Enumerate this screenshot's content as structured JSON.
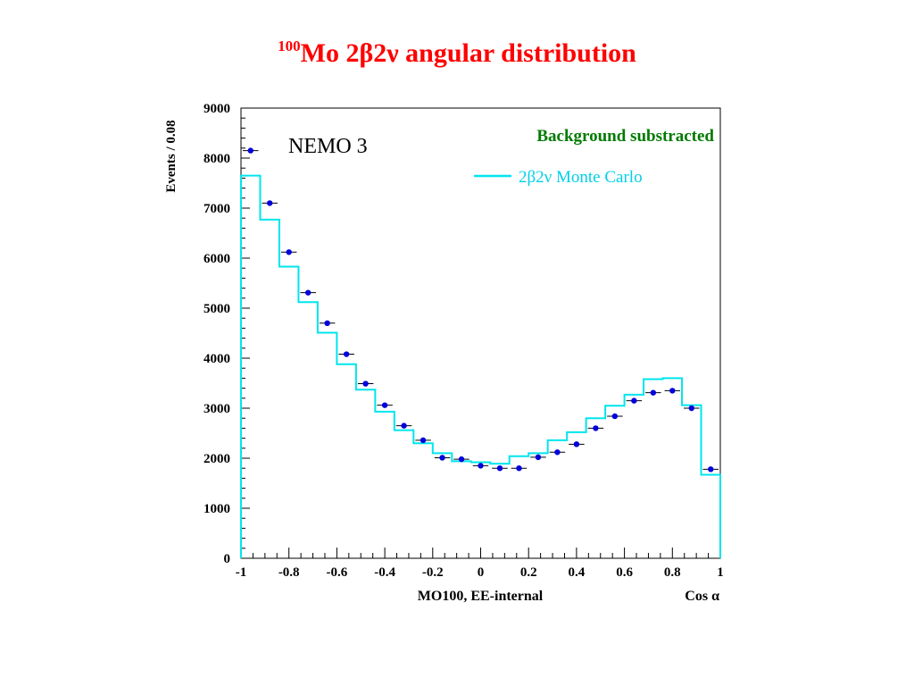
{
  "slide": {
    "title_sup": "100",
    "title_main": "Mo 2β2ν   angular distribution"
  },
  "chart_data": {
    "type": "histogram",
    "ylabel": "Events / 0.08",
    "xlabel": "MO100, EE-internal",
    "xlabel_right": "Cos α",
    "label_nemo": "NEMO 3",
    "label_background": "Background substracted",
    "legend": {
      "label": "2β2ν Monte Carlo",
      "placement": "top-right"
    },
    "xlim": [
      -1,
      1
    ],
    "ylim": [
      0,
      9000
    ],
    "xticks": [
      "-1",
      "-0.8",
      "-0.6",
      "-0.4",
      "-0.2",
      "0",
      "0.2",
      "0.4",
      "0.6",
      "0.8",
      "1"
    ],
    "yticks": [
      "0",
      "1000",
      "2000",
      "3000",
      "4000",
      "5000",
      "6000",
      "7000",
      "8000",
      "9000"
    ],
    "bin_width": 0.08,
    "bin_edges": [
      -1.0,
      -0.92,
      -0.84,
      -0.76,
      -0.68,
      -0.6,
      -0.52,
      -0.44,
      -0.36,
      -0.28,
      -0.2,
      -0.12,
      -0.04,
      0.04,
      0.12,
      0.2,
      0.28,
      0.36,
      0.44,
      0.52,
      0.6,
      0.68,
      0.76,
      0.84,
      0.92,
      1.0
    ],
    "series": [
      {
        "kind": "data",
        "color": "#0000dd",
        "values": [
          8150,
          7100,
          6120,
          5310,
          4700,
          4080,
          3490,
          3060,
          2650,
          2360,
          2010,
          1980,
          1850,
          1800,
          1800,
          2020,
          2120,
          2280,
          2600,
          2840,
          3150,
          3310,
          3350,
          3000,
          1780
        ]
      },
      {
        "kind": "monte_carlo",
        "name": "2β2ν Monte Carlo",
        "color": "#00e5ee",
        "values": [
          7650,
          6770,
          5830,
          5120,
          4510,
          3880,
          3370,
          2930,
          2560,
          2300,
          2100,
          1940,
          1920,
          1890,
          2040,
          2100,
          2360,
          2520,
          2800,
          3050,
          3270,
          3580,
          3600,
          3060,
          1670
        ]
      }
    ]
  }
}
